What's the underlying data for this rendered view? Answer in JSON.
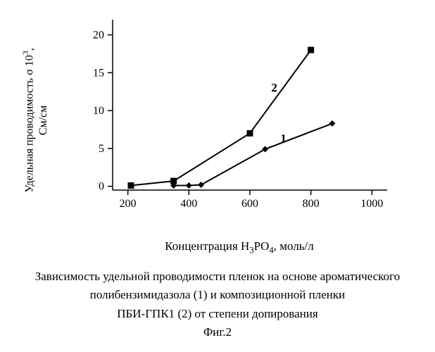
{
  "chart": {
    "type": "line",
    "background_color": "#ffffff",
    "axis_color": "#000000",
    "xlim": [
      150,
      1050
    ],
    "ylim": [
      -0.5,
      22
    ],
    "xticks": [
      200,
      400,
      600,
      800,
      1000
    ],
    "yticks": [
      0,
      5,
      10,
      15,
      20
    ],
    "xtick_labels": [
      "200",
      "400",
      "600",
      "800",
      "1000"
    ],
    "ytick_labels": [
      "0",
      "5",
      "10",
      "15",
      "20"
    ],
    "tick_fontsize": 16,
    "label_fontsize": 17,
    "ylabel_line1": "Удельная проводимость σ 10",
    "ylabel_sup": "3",
    "ylabel_tail": ",",
    "ylabel_line2": "См/см",
    "xlabel_pre": "Концентрация H",
    "xlabel_sub1": "3",
    "xlabel_mid": "PO",
    "xlabel_sub2": "4",
    "xlabel_post": ", моль/л",
    "series": [
      {
        "id": "1",
        "label": "1",
        "marker": "diamond",
        "marker_size": 9,
        "color": "#000000",
        "line_width": 2,
        "x": [
          350,
          400,
          440,
          650,
          870
        ],
        "y": [
          0.1,
          0.1,
          0.2,
          4.9,
          8.3
        ],
        "label_pos": {
          "x": 710,
          "y": 5.8
        }
      },
      {
        "id": "2",
        "label": "2",
        "marker": "square",
        "marker_size": 9,
        "color": "#000000",
        "line_width": 2,
        "x": [
          210,
          350,
          600,
          800
        ],
        "y": [
          0.1,
          0.7,
          7.0,
          18.0
        ],
        "label_pos": {
          "x": 680,
          "y": 12.5
        }
      }
    ]
  },
  "caption": {
    "line1": "Зависимость удельной проводимости пленок на основе ароматического",
    "line2": "полибензимидазола (1) и композиционной пленки",
    "line3": "ПБИ-ГПК1 (2) от степени допирования",
    "line4": "Фиг.2",
    "fontsize": 17
  }
}
